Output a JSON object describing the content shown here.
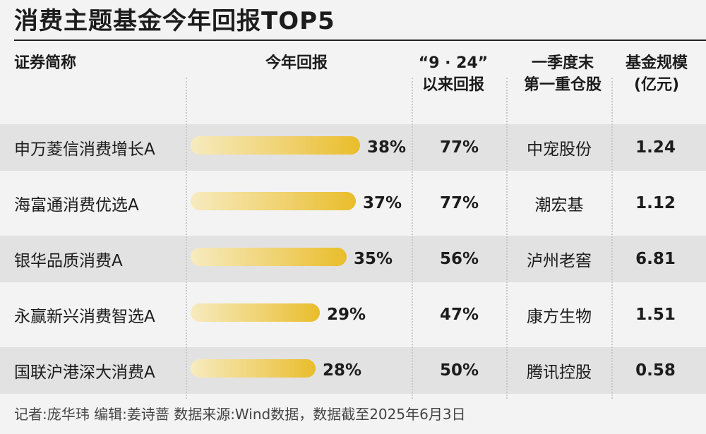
{
  "title": "消费主题基金今年回报TOP5",
  "headers": {
    "name": "证券简称",
    "ytd": "今年回报",
    "since924_line1": "“9 · 24”",
    "since924_line2": "以来回报",
    "holding_line1": "一季度末",
    "holding_line2": "第一重仓股",
    "size_line1": "基金规模",
    "size_line2": "(亿元)"
  },
  "chart_data": {
    "type": "bar",
    "orientation": "horizontal",
    "categories": [
      "申万菱信消费增长A",
      "海富通消费优选A",
      "银华品质消费A",
      "永赢新兴消费智选A",
      "国联沪港深大消费A"
    ],
    "values": [
      38,
      37,
      35,
      29,
      28
    ],
    "value_labels": [
      "38%",
      "37%",
      "35%",
      "29%",
      "28%"
    ],
    "unit": "%",
    "xlim": [
      0,
      38
    ],
    "bar_gradient": [
      "#f7ebbf",
      "#efd06a",
      "#e9bd2a"
    ]
  },
  "rows": [
    {
      "since924": "77%",
      "holding": "中宠股份",
      "size": "1.24"
    },
    {
      "since924": "77%",
      "holding": "潮宏基",
      "size": "1.12"
    },
    {
      "since924": "56%",
      "holding": "泸州老窖",
      "size": "6.81"
    },
    {
      "since924": "47%",
      "holding": "康方生物",
      "size": "1.51"
    },
    {
      "since924": "50%",
      "holding": "腾讯控股",
      "size": "0.58"
    }
  ],
  "colors": {
    "row_shade": "#e2e2e2",
    "background": "#f3f3f3"
  },
  "footer": "记者:庞华玮  编辑:姜诗蔷  数据来源:Wind数据，数据截至2025年6月3日"
}
